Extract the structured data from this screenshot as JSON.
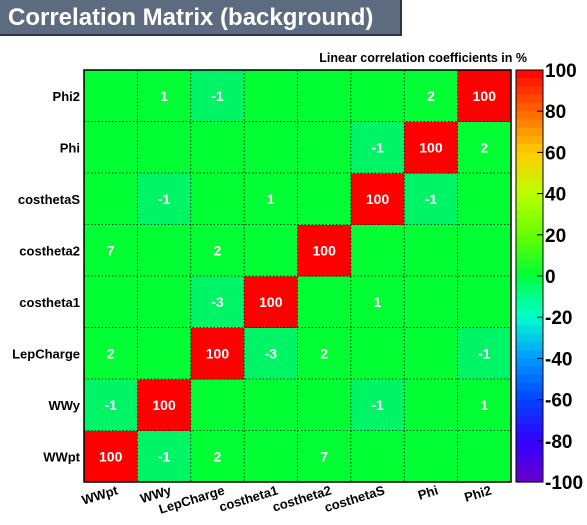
{
  "header": {
    "title": "Correlation Matrix (background)",
    "subtitle": "Linear correlation coefficients in %"
  },
  "chart_data": {
    "type": "heatmap",
    "title": "Correlation Matrix (background)",
    "subtitle": "Linear correlation coefficients in %",
    "x_labels": [
      "WWpt",
      "WWy",
      "LepCharge",
      "costheta1",
      "costheta2",
      "costhetaS",
      "Phi",
      "Phi2"
    ],
    "y_labels": [
      "WWpt",
      "WWy",
      "LepCharge",
      "costheta1",
      "costheta2",
      "costhetaS",
      "Phi",
      "Phi2"
    ],
    "matrix": [
      [
        100,
        -1,
        2,
        0,
        7,
        0,
        0,
        0
      ],
      [
        -1,
        100,
        0,
        0,
        0,
        -1,
        0,
        1
      ],
      [
        2,
        0,
        100,
        -3,
        2,
        0,
        0,
        -1
      ],
      [
        0,
        0,
        -3,
        100,
        0,
        1,
        0,
        0
      ],
      [
        7,
        0,
        2,
        0,
        100,
        0,
        0,
        0
      ],
      [
        0,
        -1,
        0,
        1,
        0,
        100,
        -1,
        0
      ],
      [
        0,
        0,
        0,
        0,
        0,
        -1,
        100,
        2
      ],
      [
        0,
        1,
        -1,
        0,
        0,
        0,
        2,
        100
      ]
    ],
    "zlim": [
      -100,
      100
    ],
    "colorbar_ticks": [
      100,
      80,
      60,
      40,
      20,
      0,
      -20,
      -40,
      -60,
      -80,
      -100
    ],
    "grid": true,
    "colors": {
      "neg_100": "#6600cc",
      "zero": "#00ff33",
      "slight_neg": "#00f566",
      "pos_100": "#ff0000"
    }
  }
}
